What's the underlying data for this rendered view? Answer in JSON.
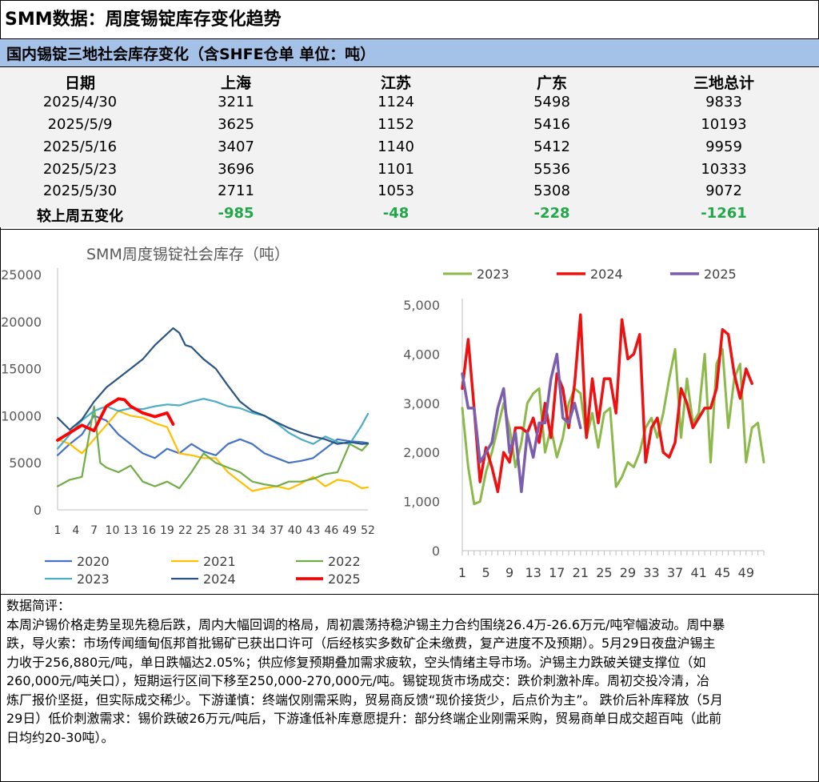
{
  "page": {
    "title": "SMM数据：周度锡锭库存变化趋势"
  },
  "table": {
    "title": "国内锡锭三地社会库存变化（含SHFE仓单 单位：吨）",
    "headers": [
      "日期",
      "上海",
      "江苏",
      "广东",
      "三地总计"
    ],
    "rows": [
      [
        "2025/4/30",
        "3211",
        "1124",
        "5498",
        "9833"
      ],
      [
        "2025/5/9",
        "3625",
        "1152",
        "5416",
        "10193"
      ],
      [
        "2025/5/16",
        "3407",
        "1140",
        "5412",
        "9959"
      ],
      [
        "2025/5/23",
        "3696",
        "1101",
        "5536",
        "10333"
      ],
      [
        "2025/5/30",
        "2711",
        "1053",
        "5308",
        "9072"
      ]
    ],
    "change_row": [
      "较上周五变化",
      "-985",
      "-48",
      "-228",
      "-1261"
    ]
  },
  "notes": {
    "heading": "数据简评：",
    "lines": [
      "本周沪锡价格走势呈现先稳后跌，周内大幅回调的格局，周初震荡持稳沪锡主力合约围绕26.4万-26.6万元/吨窄幅波动。周中暴",
      "跌，导火索：市场传闻缅甸佤邦首批锡矿已获出口许可（后经核实多数矿企未缴费，复产进度不及预期）。5月29日夜盘沪锡主",
      "力收于256,880元/吨，单日跌幅达2.05%；供应修复预期叠加需求疲软，空头情绪主导市场。沪锡主力跌破关键支撑位（如",
      "260,000元/吨关口），短期运行区间下移至250,000-270,000元/吨。锡锭现货市场成交：跌价刺激补库。周初交投冷清，冶",
      "炼厂报价坚挺，但实际成交稀少。下游谨慎：终端仅刚需采购，贸易商反馈“现价接货少，后点价为主”。 跌价后补库释放（5月",
      "29日）低价刺激需求：锡价跌破26万元/吨后，下游逢低补库意愿提升：部分终端企业刚需采购，贸易商单日成交超百吨（此前",
      "日均约20-30吨）。"
    ]
  },
  "chart_data": [
    {
      "type": "line",
      "title": "SMM周度锡锭社会库存（吨）",
      "ylim": [
        0,
        25000
      ],
      "yticks": [
        "0",
        "5000",
        "10000",
        "15000",
        "20000",
        "25000"
      ],
      "xticks": [
        "1",
        "4",
        "7",
        "10",
        "13",
        "16",
        "19",
        "22",
        "25",
        "28",
        "31",
        "34",
        "37",
        "40",
        "43",
        "46",
        "49",
        "52"
      ],
      "x_range": [
        1,
        52
      ],
      "legend_position": "bottom",
      "series": [
        {
          "name": "2020",
          "color": "#4472c4",
          "width": 2.2,
          "x": [
            1,
            3,
            5,
            7,
            9,
            11,
            13,
            15,
            17,
            19,
            21,
            23,
            25,
            27,
            29,
            31,
            33,
            35,
            37,
            39,
            41,
            43,
            45,
            47,
            49,
            51,
            52
          ],
          "values": [
            5800,
            7000,
            8000,
            10000,
            9500,
            8000,
            7000,
            6000,
            5500,
            6500,
            6000,
            7000,
            6200,
            5800,
            7000,
            7500,
            7000,
            6000,
            5500,
            5000,
            5200,
            5500,
            6500,
            7500,
            7300,
            7200,
            7100
          ]
        },
        {
          "name": "2021",
          "color": "#ffc000",
          "width": 2.2,
          "x": [
            1,
            3,
            5,
            7,
            9,
            11,
            13,
            15,
            17,
            19,
            21,
            23,
            25,
            27,
            29,
            31,
            33,
            35,
            37,
            39,
            41,
            43,
            45,
            47,
            49,
            51,
            52
          ],
          "values": [
            7500,
            7000,
            6000,
            7500,
            9000,
            10500,
            10000,
            9800,
            9200,
            8800,
            6000,
            5800,
            5500,
            5500,
            4000,
            3000,
            2000,
            2300,
            2500,
            2200,
            2800,
            3500,
            2500,
            3200,
            3000,
            2300,
            2400
          ]
        },
        {
          "name": "2022",
          "color": "#70ad47",
          "width": 2.2,
          "x": [
            1,
            3,
            5,
            7,
            8,
            9,
            11,
            13,
            15,
            17,
            19,
            21,
            23,
            25,
            27,
            29,
            31,
            33,
            35,
            37,
            39,
            41,
            43,
            45,
            47,
            49,
            51,
            52
          ],
          "values": [
            2500,
            3200,
            3500,
            11000,
            5000,
            4500,
            4000,
            4700,
            3000,
            2500,
            3000,
            2300,
            4000,
            6000,
            5000,
            4500,
            4000,
            3000,
            2700,
            2500,
            3000,
            3000,
            3300,
            3800,
            4000,
            7000,
            6300,
            7000
          ]
        },
        {
          "name": "2023",
          "color": "#4bacc6",
          "width": 2.2,
          "x": [
            1,
            3,
            5,
            7,
            9,
            11,
            13,
            15,
            17,
            19,
            21,
            23,
            25,
            27,
            29,
            31,
            33,
            35,
            37,
            39,
            41,
            43,
            45,
            47,
            49,
            51,
            52
          ],
          "values": [
            6500,
            8000,
            9500,
            10500,
            11000,
            10500,
            10800,
            10700,
            11000,
            11200,
            11100,
            11500,
            11800,
            11500,
            11000,
            10800,
            10300,
            10000,
            9200,
            8200,
            7500,
            7000,
            7800,
            7200,
            7000,
            9000,
            10200
          ]
        },
        {
          "name": "2024",
          "color": "#2a5582",
          "width": 2.2,
          "x": [
            1,
            3,
            5,
            7,
            9,
            11,
            13,
            15,
            17,
            19,
            20,
            21,
            22,
            23,
            25,
            27,
            29,
            31,
            33,
            35,
            37,
            39,
            41,
            43,
            45,
            47,
            49,
            51,
            52
          ],
          "values": [
            9800,
            8500,
            9600,
            11500,
            13000,
            14000,
            15000,
            16000,
            17500,
            18700,
            19300,
            18800,
            17500,
            17300,
            16000,
            15000,
            13200,
            11500,
            10500,
            10000,
            9300,
            8700,
            8200,
            7800,
            7500,
            7000,
            7200,
            7000,
            7050
          ]
        },
        {
          "name": "2025",
          "color": "#ff0000",
          "width": 3.8,
          "x": [
            1,
            3,
            5,
            7,
            9,
            11,
            12,
            13,
            15,
            17,
            19,
            20
          ],
          "values": [
            7400,
            8200,
            9000,
            8400,
            11000,
            11800,
            11700,
            11000,
            10300,
            9900,
            10300,
            9100
          ]
        }
      ]
    },
    {
      "type": "line",
      "ylim": [
        0,
        5000
      ],
      "yticks": [
        "0",
        "1,000",
        "2,000",
        "3,000",
        "4,000",
        "5,000"
      ],
      "xticks": [
        "1",
        "5",
        "9",
        "13",
        "17",
        "21",
        "25",
        "29",
        "33",
        "37",
        "41",
        "45",
        "49"
      ],
      "x_range": [
        1,
        52
      ],
      "legend_position": "top",
      "series": [
        {
          "name": "2023",
          "color": "#8db84a",
          "width": 3,
          "x": [
            1,
            2,
            3,
            4,
            5,
            6,
            7,
            8,
            9,
            10,
            11,
            12,
            13,
            14,
            15,
            16,
            17,
            18,
            19,
            20,
            21,
            22,
            23,
            24,
            25,
            26,
            27,
            28,
            29,
            30,
            31,
            32,
            33,
            34,
            35,
            36,
            37,
            38,
            39,
            40,
            41,
            42,
            43,
            44,
            45,
            46,
            47,
            48,
            49,
            50,
            51,
            52
          ],
          "values": [
            2900,
            1700,
            950,
            1000,
            1600,
            2000,
            2500,
            3000,
            2500,
            1700,
            2200,
            3000,
            3200,
            3300,
            2000,
            2500,
            1900,
            2300,
            3000,
            3300,
            3200,
            2300,
            2800,
            2100,
            2800,
            2900,
            1300,
            1500,
            1800,
            1700,
            2000,
            2500,
            2700,
            2300,
            2800,
            3500,
            4100,
            2300,
            3500,
            2600,
            2800,
            4000,
            1800,
            3800,
            4100,
            2500,
            3500,
            3800,
            1800,
            2500,
            2600,
            1800
          ]
        },
        {
          "name": "2024",
          "color": "#ee1111",
          "width": 3.5,
          "x": [
            1,
            2,
            3,
            4,
            5,
            6,
            7,
            8,
            9,
            10,
            11,
            12,
            13,
            14,
            15,
            16,
            17,
            18,
            19,
            20,
            21,
            22,
            23,
            24,
            25,
            26,
            27,
            28,
            29,
            30,
            31,
            32,
            33,
            34,
            35,
            36,
            37,
            38,
            39,
            40,
            41,
            42,
            43,
            44,
            45,
            46,
            47,
            48,
            49,
            50
          ],
          "values": [
            3300,
            4300,
            2900,
            1400,
            2100,
            1700,
            1200,
            2000,
            1800,
            2500,
            2500,
            2400,
            2700,
            2200,
            3000,
            2300,
            3600,
            3300,
            2500,
            3400,
            4800,
            2300,
            3500,
            2600,
            3500,
            3500,
            2800,
            4700,
            3900,
            4000,
            4400,
            1800,
            2500,
            2700,
            2000,
            1900,
            2200,
            3300,
            3000,
            2500,
            2700,
            2900,
            2900,
            3300,
            4500,
            4400,
            3600,
            3100,
            3700,
            3400
          ]
        },
        {
          "name": "2025",
          "color": "#7b5fae",
          "width": 3.5,
          "x": [
            1,
            2,
            3,
            4,
            5,
            6,
            7,
            8,
            9,
            10,
            11,
            12,
            13,
            14,
            15,
            16,
            17,
            18,
            19,
            20,
            21
          ],
          "values": [
            3600,
            2900,
            2900,
            1800,
            2000,
            2200,
            2900,
            3300,
            2000,
            2400,
            1200,
            2400,
            1900,
            2600,
            2600,
            3500,
            4000,
            2700,
            2600,
            3000,
            2500
          ]
        }
      ]
    }
  ]
}
